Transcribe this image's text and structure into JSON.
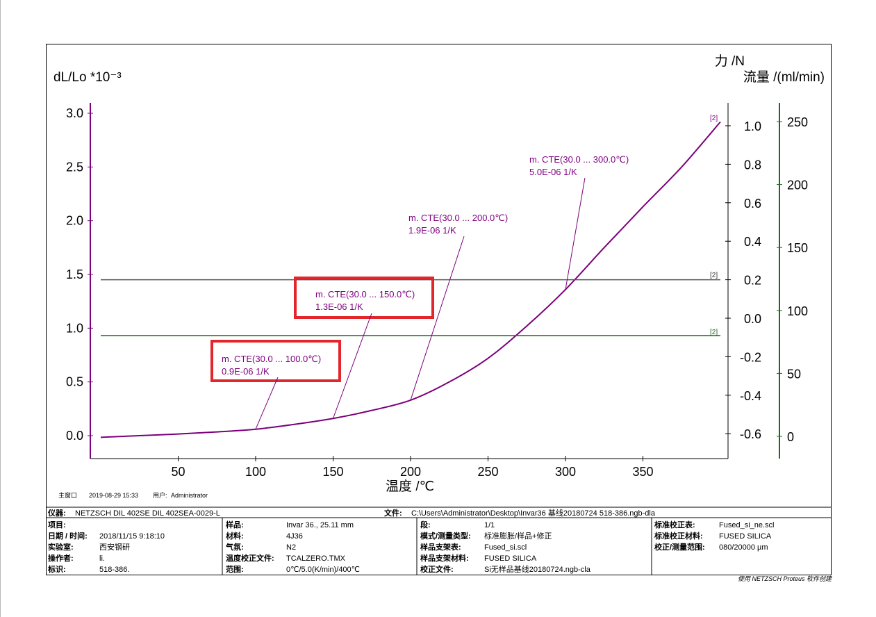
{
  "chart_data": {
    "type": "line",
    "xlabel": "温度 /℃",
    "ylabel": "dL/Lo *10⁻³",
    "y2label": "力 /N",
    "y3label": "流量 /(ml/min)",
    "xlim": [
      0,
      400
    ],
    "ylim": [
      -0.2,
      3.1
    ],
    "y2lim": [
      -0.75,
      1.1
    ],
    "y3lim": [
      -17,
      267
    ],
    "x_ticks": [
      50,
      100,
      150,
      200,
      250,
      300,
      350
    ],
    "y_ticks": [
      "3.0",
      "2.5",
      "2.0",
      "1.5",
      "1.0",
      "0.5",
      "0.0"
    ],
    "y2_ticks": [
      "1.0",
      "0.8",
      "0.6",
      "0.4",
      "0.2",
      "0.0",
      "-0.2",
      "-0.4",
      "-0.6"
    ],
    "y3_ticks": [
      "250",
      "200",
      "150",
      "100",
      "50",
      "0"
    ],
    "series": [
      {
        "axis": "left",
        "color": "#7b007b",
        "x": [
          0,
          25,
          50,
          75,
          100,
          125,
          150,
          175,
          200,
          225,
          250,
          275,
          300,
          325,
          350,
          375,
          400
        ],
        "y": [
          -0.015,
          0.0,
          0.015,
          0.035,
          0.06,
          0.105,
          0.16,
          0.235,
          0.33,
          0.5,
          0.72,
          1.02,
          1.36,
          1.75,
          2.13,
          2.5,
          2.92
        ]
      },
      {
        "axis": "right1",
        "color": "#555555",
        "x": [
          0,
          400
        ],
        "y": [
          0.2,
          0.2
        ]
      },
      {
        "axis": "right2",
        "color": "#1a6b1a",
        "x": [
          0,
          400
        ],
        "y": [
          80,
          80
        ]
      }
    ],
    "end_labels": [
      "[2]",
      "[2]",
      "[2]"
    ],
    "annotations": [
      {
        "line1": "m. CTE(30.0 ... 100.0℃)",
        "line2": "0.9E-06 1/K",
        "x": 100,
        "y": 0.06,
        "boxed": true
      },
      {
        "line1": "m. CTE(30.0 ... 150.0℃)",
        "line2": "1.3E-06 1/K",
        "x": 150,
        "y": 0.16,
        "boxed": true
      },
      {
        "line1": "m. CTE(30.0 ... 200.0℃)",
        "line2": "1.9E-06 1/K",
        "x": 200,
        "y": 0.33,
        "boxed": false
      },
      {
        "line1": "m. CTE(30.0 ... 300.0℃)",
        "line2": "5.0E-06 1/K",
        "x": 300,
        "y": 1.36,
        "boxed": false
      }
    ],
    "highlight_color": "#e3262b"
  },
  "meta": {
    "window": "主窗口",
    "datetime": "2019-08-29 15:33",
    "user_label": "用户:",
    "user": "Administrator"
  },
  "footer": {
    "instrument_label": "仪器:",
    "instrument": "NETZSCH DIL 402SE DIL 402SEA-0029-L",
    "file_label": "文件:",
    "file": "C:\\Users\\Administrator\\Desktop\\Invar36  基线20180724  518-386.ngb-dla",
    "rows": [
      [
        "项目:",
        "",
        "样品:",
        "Invar 36., 25.11 mm",
        "段:",
        "1/1",
        "标准校正表:",
        "Fused_si_ne.scl"
      ],
      [
        "日期 / 时间:",
        "2018/11/15 9:18:10",
        "材料:",
        "4J36",
        "模式/测量类型:",
        "标准膨胀/样品+修正",
        "标准校正材料:",
        "FUSED SILICA"
      ],
      [
        "实验室:",
        "西安钢研",
        "气氛:",
        "N2",
        "样品支架表:",
        "Fused_si.scl",
        "校正/测量范围:",
        "080/20000 µm"
      ],
      [
        "操作者:",
        "li.",
        "温度校正文件:",
        "TCALZERO.TMX",
        "样品支架材料:",
        "FUSED SILICA",
        "",
        ""
      ],
      [
        "标识:",
        "518-386.",
        "范围:",
        "0℃/5.0(K/min)/400℃",
        "校正文件:",
        "Si无样品基线20180724.ngb-cla",
        "",
        ""
      ]
    ],
    "credit": "使用 NETZSCH Proteus 软件创建"
  }
}
